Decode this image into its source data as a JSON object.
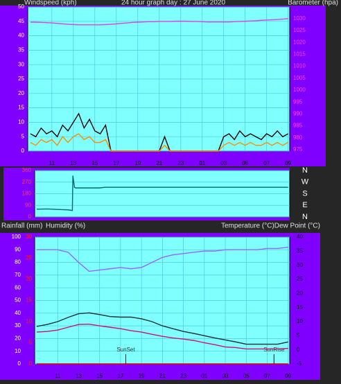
{
  "chart_data": [
    {
      "type": "line",
      "title": "24 hour graph day : 27 June 2020",
      "y_label": "Windspeed (kph)",
      "y2_label": "Barometer (hpa)",
      "x": [
        9,
        9.5,
        10,
        10.5,
        11,
        11.5,
        12,
        12.5,
        13,
        13.5,
        14,
        14.5,
        15,
        15.5,
        16,
        16.5,
        17,
        17.5,
        18,
        18.5,
        19,
        19.5,
        20,
        20.5,
        21,
        21.5,
        22,
        22.5,
        23,
        23.5,
        24,
        24.5,
        25,
        25.5,
        26,
        26.5,
        27,
        27.5,
        28,
        28.5,
        29,
        29.5,
        30,
        30.5,
        31,
        31.5,
        32,
        32.5,
        33
      ],
      "xlim": [
        8.75,
        33.15
      ],
      "xticks": [
        11,
        13,
        15,
        17,
        19,
        21,
        23,
        {
          "value": 25,
          "label": "01"
        },
        {
          "value": 27,
          "label": "03"
        },
        {
          "value": 29,
          "label": "05"
        },
        {
          "value": 31,
          "label": "07"
        },
        {
          "value": 33,
          "label": "09"
        }
      ],
      "ylim": [
        0,
        50
      ],
      "yticks": [
        0,
        5,
        10,
        15,
        20,
        25,
        30,
        35,
        40,
        45,
        50
      ],
      "y2lim": [
        974.4,
        1034.9
      ],
      "y2ticks": [
        975,
        980,
        985,
        990,
        995,
        1000,
        1005,
        1010,
        1015,
        1020,
        1025,
        1030
      ],
      "grid": true,
      "series": [
        {
          "color": "#000000",
          "values": [
            6,
            5,
            8,
            6,
            7,
            5,
            9,
            7,
            10,
            13,
            8,
            11,
            7,
            6,
            9,
            0,
            0,
            0,
            0,
            0,
            0,
            0,
            0,
            0,
            0,
            5,
            0,
            0,
            0,
            0,
            0,
            0,
            0,
            0,
            0,
            0,
            5,
            6,
            4,
            7,
            5,
            6,
            5,
            4,
            6,
            5,
            7,
            5,
            6
          ]
        },
        {
          "color": "#ff8c00",
          "values": [
            3,
            2,
            4,
            3,
            4,
            2,
            5,
            3,
            5,
            6,
            4,
            5,
            3,
            3,
            4,
            0,
            0,
            0,
            0,
            0,
            0,
            0,
            0,
            0,
            0,
            2,
            0,
            0,
            0,
            0,
            0,
            0,
            0,
            0,
            0,
            0,
            2,
            3,
            2,
            3,
            2,
            3,
            2,
            2,
            3,
            2,
            3,
            2,
            3
          ]
        },
        {
          "color": "#e040e0",
          "axis": "y2",
          "values": [
            1028.5,
            1028.5,
            1028.4,
            1028.3,
            1028.2,
            1028.0,
            1027.8,
            1027.6,
            1027.5,
            1027.4,
            1027.4,
            1027.4,
            1027.4,
            1027.4,
            1027.5,
            1027.6,
            1027.8,
            1028.0,
            1028.2,
            1028.4,
            1028.5,
            1028.6,
            1028.7,
            1028.7,
            1028.8,
            1028.8,
            1028.8,
            1028.9,
            1028.9,
            1028.9,
            1028.8,
            1028.8,
            1028.7,
            1028.6,
            1028.6,
            1028.6,
            1028.6,
            1028.6,
            1028.7,
            1028.8,
            1028.9,
            1029.0,
            1029.1,
            1029.3,
            1029.4,
            1029.5,
            1029.6,
            1029.8,
            1030.0
          ]
        }
      ]
    },
    {
      "type": "line",
      "x": [
        9,
        10,
        11,
        12,
        12.4,
        12.45,
        12.6,
        12.7,
        15,
        15.5,
        33
      ],
      "xlim": [
        8.8,
        33.15
      ],
      "ylim": [
        0,
        360
      ],
      "yticks": [
        0,
        90,
        180,
        270,
        360
      ],
      "y2lim": [
        0,
        360
      ],
      "y2ticks": [
        {
          "value": 360,
          "label": "N"
        },
        {
          "value": 270,
          "label": "W"
        },
        {
          "value": 180,
          "label": "S"
        },
        {
          "value": 90,
          "label": "E"
        },
        {
          "value": 0,
          "label": "N"
        }
      ],
      "grid": true,
      "series": [
        {
          "color": "#006a6a",
          "values": [
            60,
            62,
            58,
            55,
            50,
            320,
            230,
            225,
            225,
            230,
            230
          ]
        }
      ]
    },
    {
      "type": "line",
      "y3_label": "Rainfall (mm)",
      "y_label": "Humidity (%)",
      "y2_label": "Temperature (°C)Dew Point (°C)",
      "x": [
        9,
        10,
        11,
        12,
        13,
        14,
        15,
        16,
        17,
        18,
        19,
        20,
        21,
        22,
        23,
        24,
        25,
        26,
        27,
        28,
        29,
        30,
        31,
        32,
        33
      ],
      "xlim": [
        8.8,
        33.15
      ],
      "xticks": [
        11,
        13,
        15,
        17,
        19,
        21,
        23,
        {
          "value": 25,
          "label": "01"
        },
        {
          "value": 27,
          "label": "03"
        },
        {
          "value": 29,
          "label": "05"
        },
        {
          "value": 31,
          "label": "07"
        },
        {
          "value": 33,
          "label": "09"
        }
      ],
      "ylim": [
        0,
        100
      ],
      "yticks": [
        0,
        10,
        20,
        30,
        40,
        50,
        60,
        70,
        80,
        90,
        100
      ],
      "y2lim": [
        -5,
        40
      ],
      "y2ticks": [
        -5,
        0,
        5,
        10,
        15,
        20,
        25,
        30,
        35,
        40
      ],
      "y3lim": [
        0,
        30
      ],
      "y3ticks": [
        0,
        5,
        10,
        15,
        20,
        25,
        30
      ],
      "grid": true,
      "annotations": [
        {
          "text": "SunSet",
          "x": 17.5
        },
        {
          "text": "SunRise",
          "x": 31.65
        }
      ],
      "series": [
        {
          "color": "#9966ff",
          "values": [
            90,
            90,
            90,
            88,
            80,
            73,
            74,
            75,
            76,
            75,
            76,
            80,
            84,
            86,
            87,
            88,
            89,
            89,
            90,
            90,
            90,
            90,
            91,
            91,
            92
          ]
        },
        {
          "color": "#103030",
          "axis": "y2",
          "values": [
            8.3,
            9.0,
            10.0,
            11.5,
            12.8,
            13.1,
            12.5,
            11.8,
            11.6,
            11.6,
            11.0,
            10.0,
            8.5,
            7.5,
            6.5,
            5.8,
            5.0,
            4.2,
            3.5,
            2.8,
            2.0,
            2.0,
            2.0,
            2.0,
            2.8
          ]
        },
        {
          "color": "#d0106a",
          "axis": "y2",
          "values": [
            6.3,
            6.5,
            7.0,
            8.0,
            9.0,
            9.1,
            8.5,
            8.0,
            7.5,
            6.8,
            6.3,
            5.5,
            4.8,
            4.2,
            3.8,
            3.3,
            2.5,
            1.8,
            1.0,
            0.8,
            0.3,
            0.3,
            0.3,
            0.3,
            0.5
          ]
        },
        {
          "color": "#e00000",
          "axis": "y3",
          "values": [
            0,
            0,
            0,
            0,
            0,
            0,
            0,
            0,
            0,
            0,
            0,
            0,
            0,
            0,
            0,
            0,
            0,
            0,
            0,
            0,
            0,
            0,
            0,
            0,
            0
          ]
        }
      ]
    }
  ]
}
